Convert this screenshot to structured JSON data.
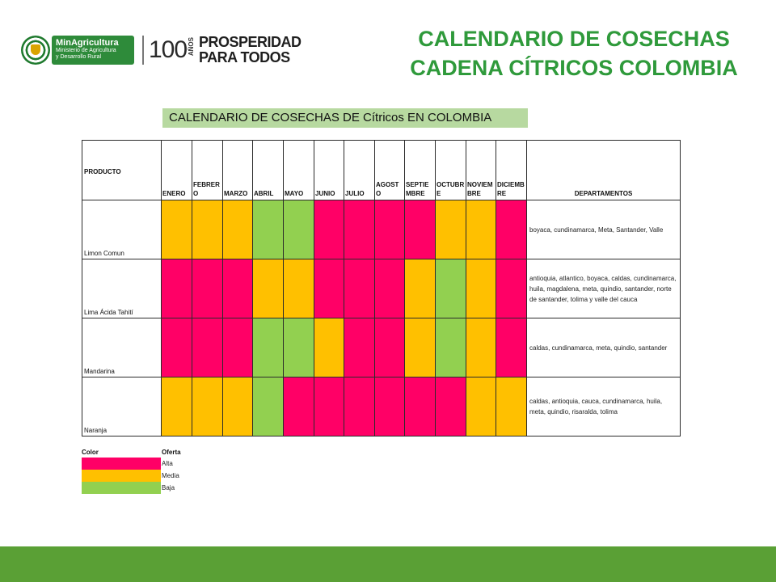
{
  "header": {
    "logos": {
      "minagri_name": "MinAgricultura",
      "minagri_sub1": "Ministerio de Agricultura",
      "minagri_sub2": "y Desarrollo Rural",
      "hundred": "100",
      "anos": "AÑOS",
      "prosperidad_line1": "PROSPERIDAD",
      "prosperidad_line2": "PARA TODOS"
    },
    "title_line1": "CALENDARIO DE COSECHAS",
    "title_line2": "CADENA CÍTRICOS COLOMBIA",
    "title_color": "#2f9a3b"
  },
  "subtitle": "CALENDARIO DE COSECHAS DE Cítricos EN COLOMBIA",
  "table": {
    "headers": {
      "product": "PRODUCTO",
      "months": [
        "ENERO",
        "FEBRERO",
        "MARZO",
        "ABRIL",
        "MAYO",
        "JUNIO",
        "JULIO",
        "AGOSTO",
        "SEPTIEMBRE",
        "OCTUBRE",
        "NOVIEMBRE",
        "DICIEMBRE"
      ],
      "departments": "DEPARTAMENTOS"
    },
    "rows": [
      {
        "product": "Limon Comun",
        "months": [
          "Media",
          "Media",
          "Media",
          "Baja",
          "Baja",
          "Alta",
          "Alta",
          "Alta",
          "Alta",
          "Media",
          "Media",
          "Alta"
        ],
        "departments": "boyaca, cundinamarca, Meta, Santander, Valle"
      },
      {
        "product": "Lima Ácida Tahití",
        "months": [
          "Alta",
          "Alta",
          "Alta",
          "Media",
          "Media",
          "Alta",
          "Alta",
          "Alta",
          "Media",
          "Baja",
          "Media",
          "Alta"
        ],
        "departments": "antioquia, atlantico, boyaca, caldas, cundinamarca, huila, magdalena, meta, quindio, santander, norte de santander, tolima y valle del cauca"
      },
      {
        "product": "Mandarina",
        "months": [
          "Alta",
          "Alta",
          "Alta",
          "Baja",
          "Baja",
          "Media",
          "Alta",
          "Alta",
          "Media",
          "Baja",
          "Media",
          "Alta"
        ],
        "departments": "caldas, cundinamarca, meta, quindio, santander"
      },
      {
        "product": "Naranja",
        "months": [
          "Media",
          "Media",
          "Media",
          "Baja",
          "Alta",
          "Alta",
          "Alta",
          "Alta",
          "Alta",
          "Alta",
          "Media",
          "Media"
        ],
        "departments": "caldas, antioquia, cauca, cundinamarca, huila, meta, quindio, risaralda, tolima"
      }
    ]
  },
  "legend": {
    "color_header": "Color",
    "offer_header": "Oferta",
    "items": [
      {
        "label": "Alta",
        "color": "#ff0066"
      },
      {
        "label": "Media",
        "color": "#ffc000"
      },
      {
        "label": "Baja",
        "color": "#92d050"
      }
    ]
  },
  "colors": {
    "Alta": "#ff0066",
    "Media": "#ffc000",
    "Baja": "#92d050",
    "footer": "#5aa035",
    "subtitle_bg": "#b7d9a0"
  }
}
